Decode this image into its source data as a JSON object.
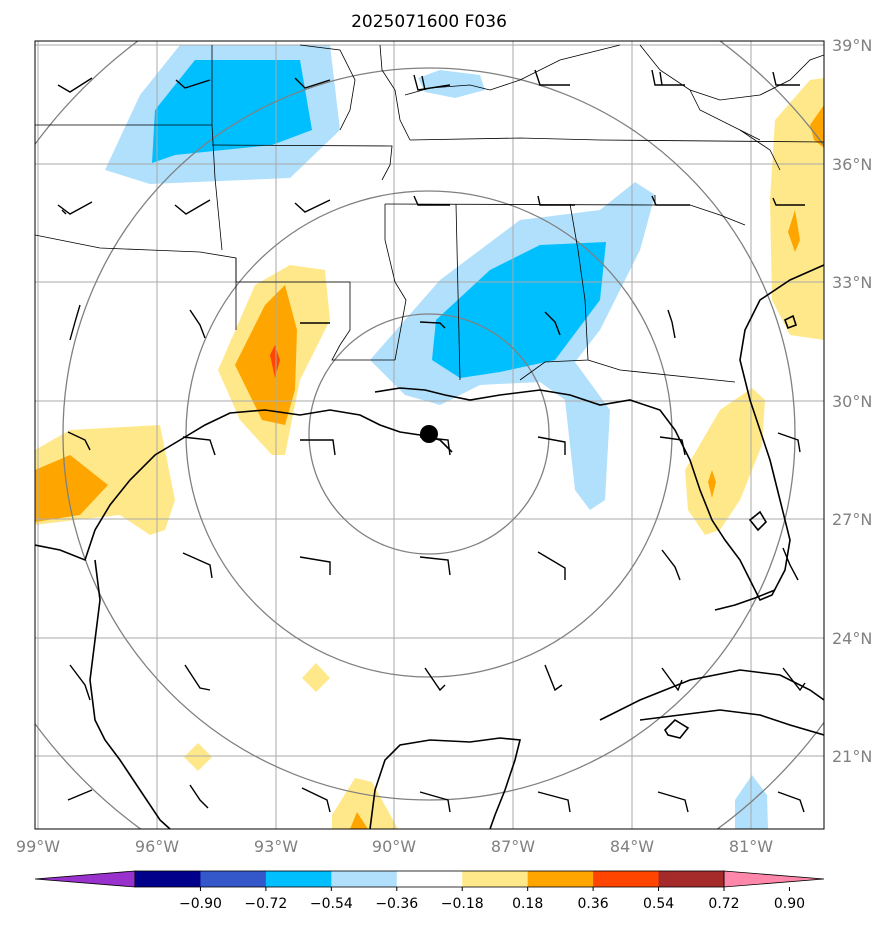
{
  "title": "2025071600 F036",
  "lat_labels": [
    "39°N",
    "36°N",
    "33°N",
    "30°N",
    "27°N",
    "24°N",
    "21°N"
  ],
  "lon_labels": [
    "99°W",
    "96°W",
    "93°W",
    "90°W",
    "87°W",
    "84°W",
    "81°W"
  ],
  "center_marker": {
    "lat": 29.2,
    "lon": -89.2
  },
  "range_ring_count": 4,
  "colorbar": {
    "extend": "both",
    "levels": [
      -0.9,
      -0.72,
      -0.54,
      -0.36,
      -0.18,
      0.18,
      0.36,
      0.54,
      0.72,
      0.9
    ],
    "tick_labels": [
      "−0.90",
      "−0.72",
      "−0.54",
      "−0.36",
      "−0.18",
      "0.18",
      "0.36",
      "0.54",
      "0.72",
      "0.90"
    ],
    "colors": [
      "#9932cc",
      "#00008b",
      "#3457c9",
      "#00bfff",
      "#b0e0fc",
      "#ffffff",
      "#ffe88a",
      "#ffa500",
      "#ff4500",
      "#a52a2a",
      "#ff88aa"
    ]
  },
  "colors": {
    "light_blue": "#b0e0fc",
    "blue": "#00bfff",
    "yellow": "#ffe88a",
    "orange": "#ffa500",
    "red": "#ff4500",
    "grid": "#aaaaaa",
    "ring": "#808080"
  }
}
